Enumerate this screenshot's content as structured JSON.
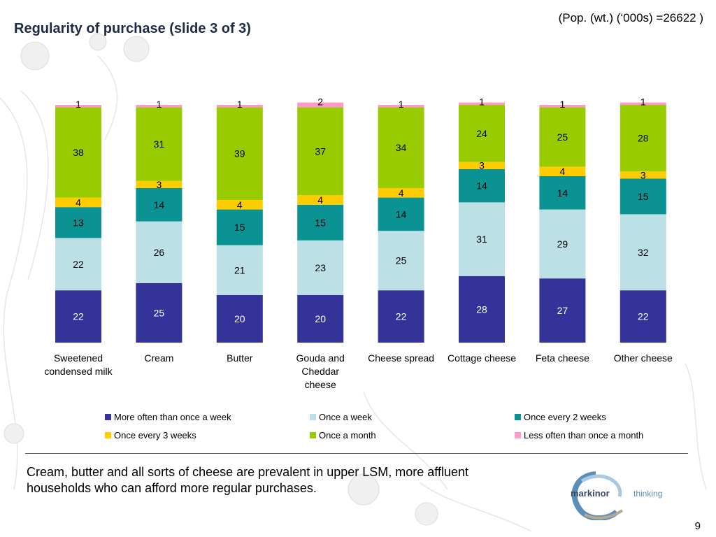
{
  "header": {
    "title": "Regularity of purchase (slide 3 of 3)",
    "population_note": "(Pop. (wt.) (‘000s) =26622 )"
  },
  "chart_data": {
    "type": "bar",
    "stacked": true,
    "categories": [
      "Sweetened condensed milk",
      "Cream",
      "Butter",
      "Gouda and Cheddar cheese",
      "Cheese spread",
      "Cottage cheese",
      "Feta cheese",
      "Other cheese"
    ],
    "category_lines": [
      [
        "Sweetened",
        "condensed milk"
      ],
      [
        "Cream"
      ],
      [
        "Butter"
      ],
      [
        "Gouda and",
        "Cheddar",
        "cheese"
      ],
      [
        "Cheese spread"
      ],
      [
        "Cottage cheese"
      ],
      [
        "Feta cheese"
      ],
      [
        "Other cheese"
      ]
    ],
    "series": [
      {
        "name": "More often than once a week",
        "color": "#33339a",
        "values": [
          22,
          25,
          20,
          20,
          22,
          28,
          27,
          22
        ]
      },
      {
        "name": "Once a week",
        "color": "#bde0e6",
        "values": [
          22,
          26,
          21,
          23,
          25,
          31,
          29,
          32
        ]
      },
      {
        "name": "Once every 2 weeks",
        "color": "#0b9292",
        "values": [
          13,
          14,
          15,
          15,
          14,
          14,
          14,
          15
        ]
      },
      {
        "name": "Once every 3 weeks",
        "color": "#ffcc00",
        "values": [
          4,
          3,
          4,
          4,
          4,
          3,
          4,
          3
        ]
      },
      {
        "name": "Once a month",
        "color": "#99cc00",
        "values": [
          38,
          31,
          39,
          37,
          34,
          24,
          25,
          28
        ]
      },
      {
        "name": "Less often than once a month",
        "color": "#ff99cc",
        "values": [
          1,
          1,
          1,
          2,
          1,
          1,
          1,
          1
        ]
      }
    ],
    "ylim": [
      0,
      100
    ],
    "legend_position": "bottom",
    "grid": false
  },
  "footer": {
    "note": "Cream, butter and all sorts of cheese are prevalent in upper LSM, more affluent households who can afford more regular purchases.",
    "page_number": "9",
    "logo_name": "markinor",
    "logo_tagline": "thinking"
  }
}
